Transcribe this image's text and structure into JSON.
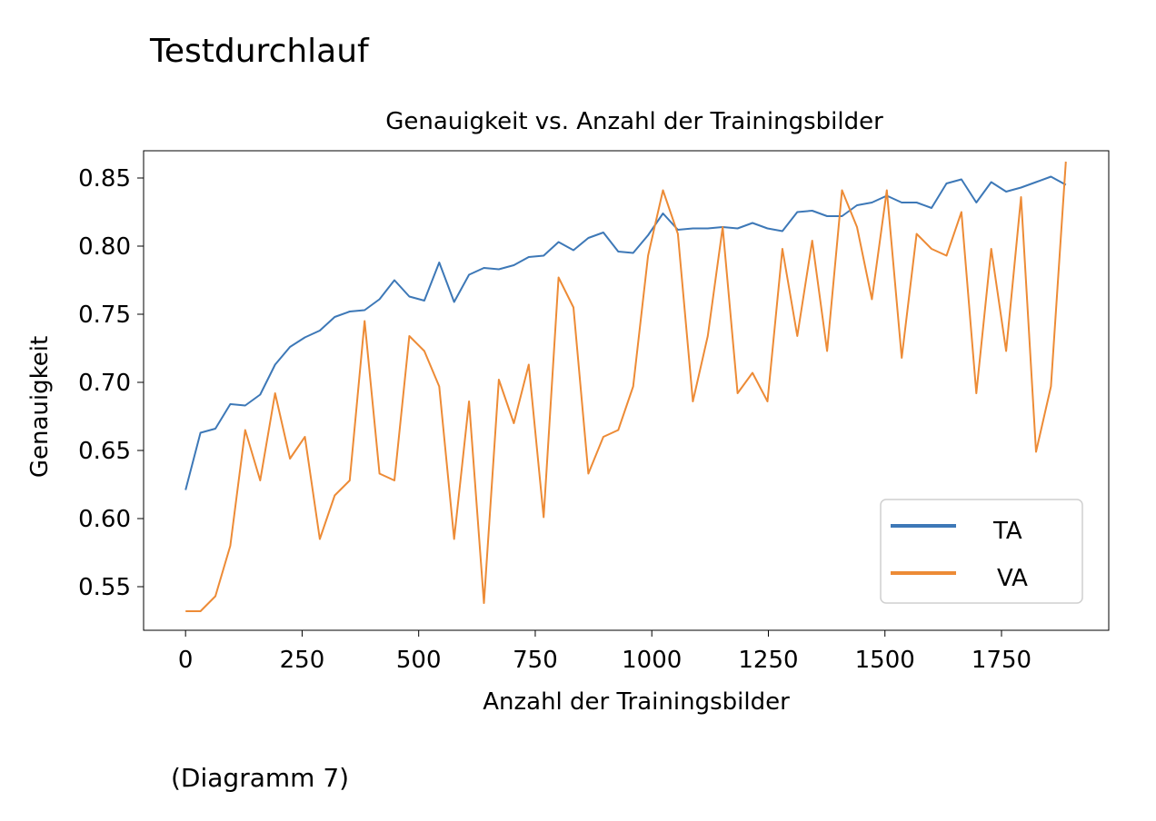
{
  "page": {
    "heading": "Testdurchlauf",
    "caption": "(Diagramm 7)"
  },
  "chart_data": {
    "type": "line",
    "title": "Genauigkeit vs. Anzahl der Trainingsbilder",
    "xlabel": "Anzahl der Trainingsbilder",
    "ylabel": "Genauigkeit",
    "xlim": [
      -90,
      1980
    ],
    "ylim": [
      0.518,
      0.87
    ],
    "x_ticks": [
      0,
      250,
      500,
      750,
      1000,
      1250,
      1500,
      1750
    ],
    "y_ticks": [
      0.55,
      0.6,
      0.65,
      0.7,
      0.75,
      0.8,
      0.85
    ],
    "y_tick_labels": [
      "0.55",
      "0.60",
      "0.65",
      "0.70",
      "0.75",
      "0.80",
      "0.85"
    ],
    "grid": false,
    "legend_position": "lower-right",
    "x": [
      0,
      32,
      64,
      96,
      128,
      160,
      192,
      224,
      256,
      288,
      320,
      352,
      384,
      416,
      448,
      480,
      512,
      544,
      576,
      608,
      640,
      672,
      704,
      736,
      768,
      800,
      832,
      864,
      896,
      928,
      960,
      992,
      1024,
      1056,
      1088,
      1120,
      1152,
      1184,
      1216,
      1248,
      1280,
      1312,
      1344,
      1376,
      1408,
      1440,
      1472,
      1504,
      1536,
      1568,
      1600,
      1632,
      1664,
      1696,
      1728,
      1760,
      1792,
      1824,
      1856,
      1888
    ],
    "series": [
      {
        "name": "TA",
        "color": "#3d78b7",
        "values": [
          0.621,
          0.663,
          0.666,
          0.684,
          0.683,
          0.691,
          0.713,
          0.726,
          0.733,
          0.738,
          0.748,
          0.752,
          0.753,
          0.761,
          0.775,
          0.763,
          0.76,
          0.788,
          0.759,
          0.779,
          0.784,
          0.783,
          0.786,
          0.792,
          0.793,
          0.803,
          0.797,
          0.806,
          0.81,
          0.796,
          0.795,
          0.808,
          0.824,
          0.812,
          0.813,
          0.813,
          0.814,
          0.813,
          0.817,
          0.813,
          0.811,
          0.825,
          0.826,
          0.822,
          0.822,
          0.83,
          0.832,
          0.837,
          0.832,
          0.832,
          0.828,
          0.846,
          0.849,
          0.832,
          0.847,
          0.84,
          0.843,
          0.847,
          0.851,
          0.845
        ]
      },
      {
        "name": "VA",
        "color": "#ed8b36",
        "values": [
          0.532,
          0.532,
          0.543,
          0.58,
          0.665,
          0.628,
          0.692,
          0.644,
          0.66,
          0.585,
          0.617,
          0.628,
          0.745,
          0.633,
          0.628,
          0.734,
          0.723,
          0.697,
          0.585,
          0.686,
          0.538,
          0.702,
          0.67,
          0.713,
          0.601,
          0.777,
          0.755,
          0.633,
          0.66,
          0.665,
          0.697,
          0.793,
          0.841,
          0.809,
          0.686,
          0.734,
          0.814,
          0.692,
          0.707,
          0.686,
          0.798,
          0.734,
          0.804,
          0.723,
          0.841,
          0.814,
          0.761,
          0.841,
          0.718,
          0.809,
          0.798,
          0.793,
          0.825,
          0.692,
          0.798,
          0.723,
          0.836,
          0.649,
          0.697,
          0.862
        ]
      }
    ]
  }
}
